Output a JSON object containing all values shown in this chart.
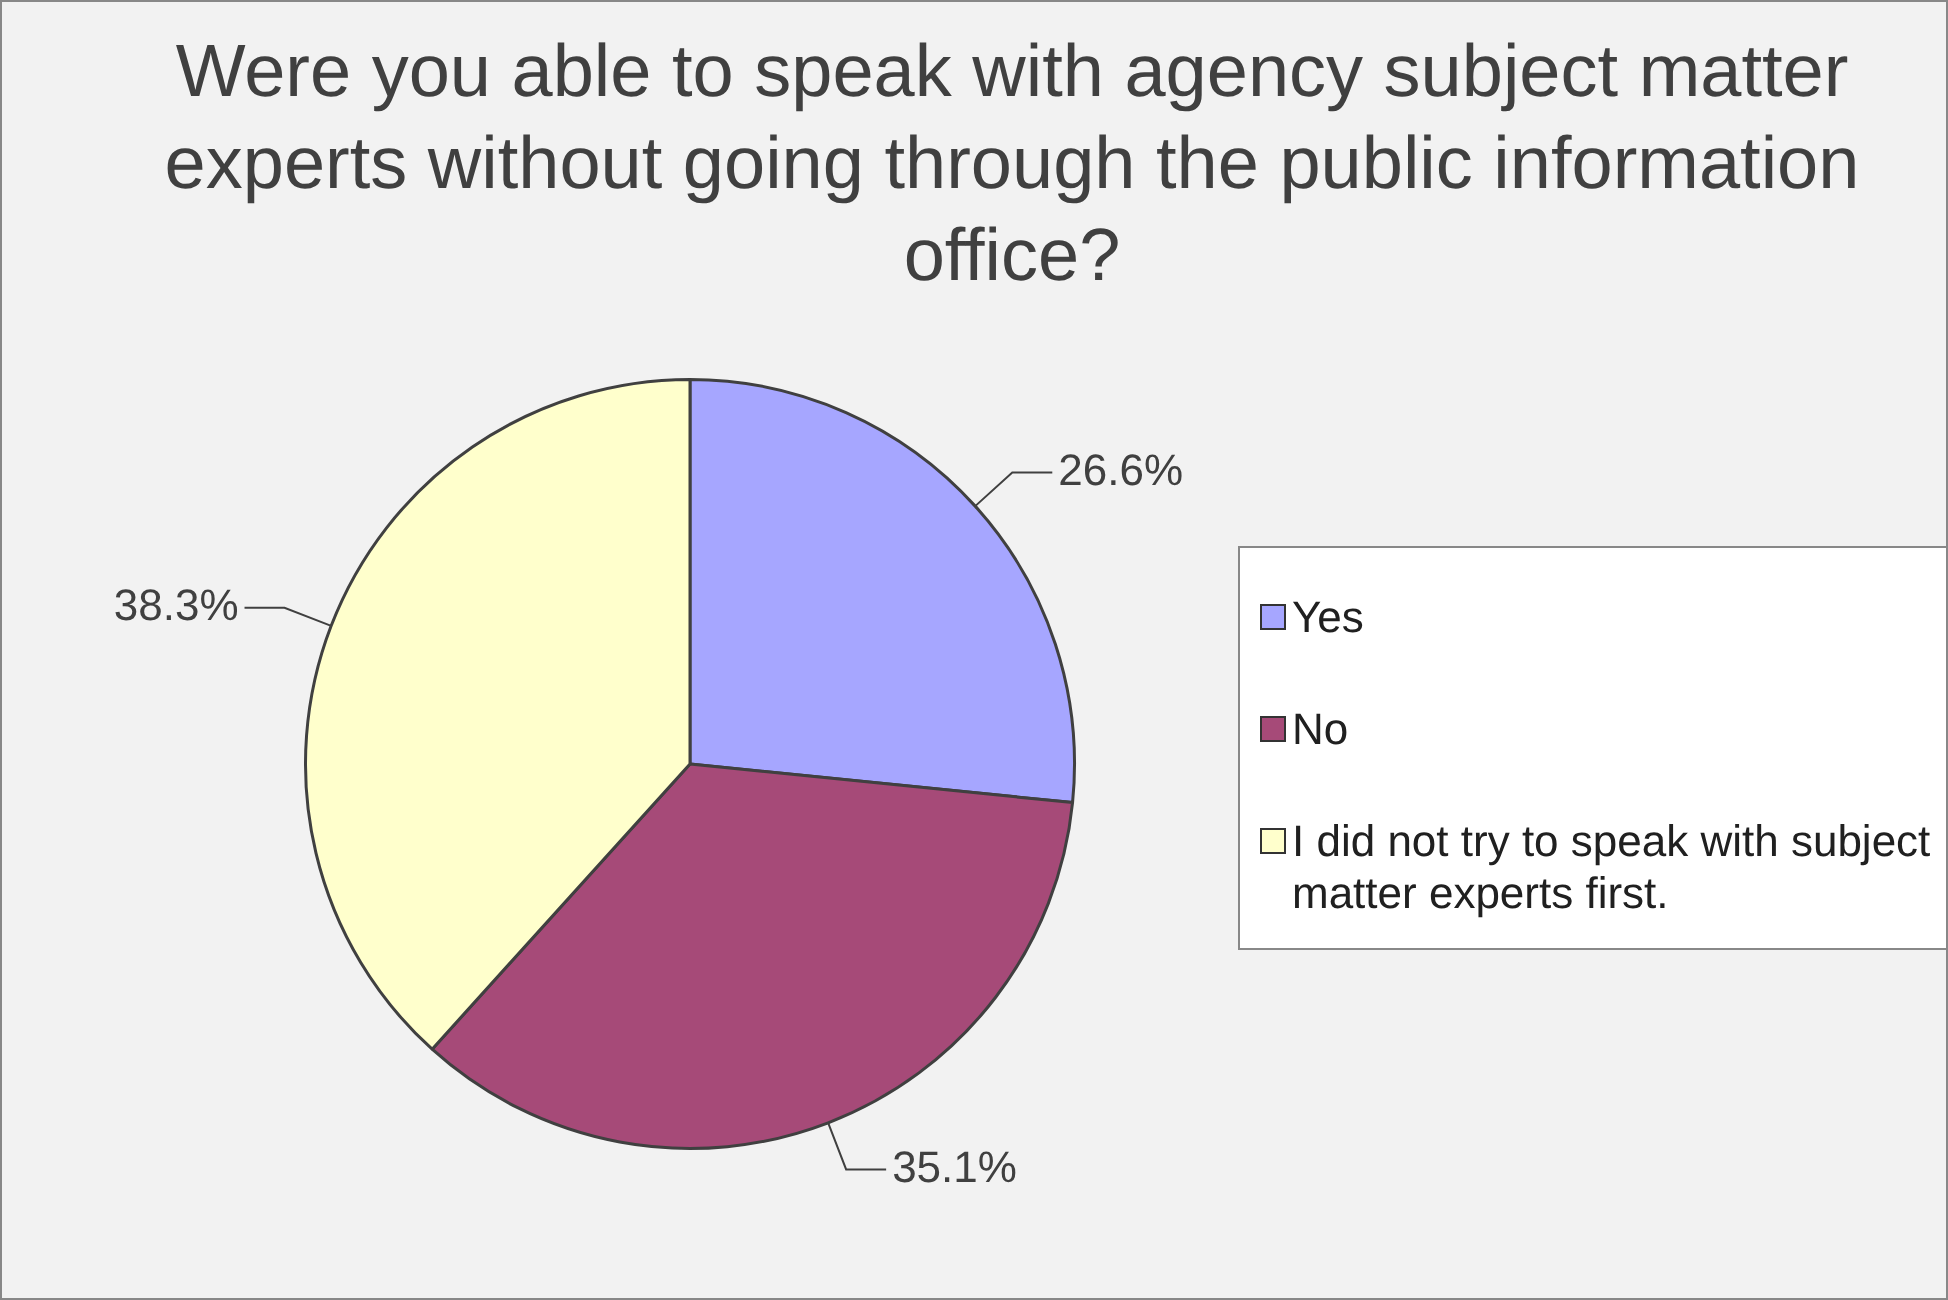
{
  "chart_data": {
    "type": "pie",
    "title": "Were you able to speak with agency subject matter experts without going through the public information office?",
    "categories": [
      "Yes",
      "No",
      "I did not try to speak with subject matter experts first."
    ],
    "values": [
      26.6,
      35.1,
      38.3
    ],
    "colors": [
      "#a6a6ff",
      "#a64a78",
      "#ffffcc"
    ],
    "value_labels": [
      "26.6%",
      "35.1%",
      "38.3%"
    ],
    "legend": "right"
  }
}
